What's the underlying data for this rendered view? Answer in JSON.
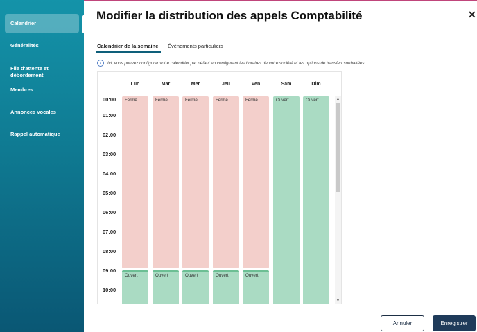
{
  "dialog": {
    "title": "Modifier la distribution des appels Comptabilité",
    "close_label": "✕"
  },
  "sidebar": {
    "items": [
      {
        "label": "Calendrier",
        "active": true
      },
      {
        "label": "Généralités"
      },
      {
        "label": "File d'attente et débordement"
      },
      {
        "label": "Membres"
      },
      {
        "label": "Annonces vocales"
      },
      {
        "label": "Rappel automatique"
      }
    ]
  },
  "tabs": [
    {
      "label": "Calendrier de la semaine",
      "active": true
    },
    {
      "label": "Évènements particuliers"
    }
  ],
  "info": {
    "icon": "i",
    "text": "Ici, vous pouvez configurer votre calendrier par défaut en configurant les horaires de votre société et les options de transfert souhaitées"
  },
  "calendar": {
    "days": [
      "Lun",
      "Mar",
      "Mer",
      "Jeu",
      "Ven",
      "Sam",
      "Dim"
    ],
    "times": [
      "00:00",
      "01:00",
      "02:00",
      "03:00",
      "04:00",
      "05:00",
      "06:00",
      "07:00",
      "08:00",
      "09:00",
      "10:00"
    ],
    "closed_label": "Fermé",
    "open_label": "Ouvert",
    "weekday_schedule": [
      {
        "state": "Fermé",
        "from": "00:00",
        "to": "09:00"
      },
      {
        "state": "Ouvert",
        "from": "09:00",
        "to": ""
      }
    ],
    "weekend_schedule": [
      {
        "state": "Ouvert",
        "from": "00:00",
        "to": ""
      }
    ]
  },
  "footer": {
    "cancel_label": "Annuler",
    "save_label": "Enregistrer"
  },
  "colors": {
    "accent": "#c0457b",
    "sidebar_top": "#1493a9",
    "sidebar_bottom": "#0a5774",
    "closed": "#f3cfcb",
    "open": "#aadbc3",
    "primary_button": "#1f3b5a"
  }
}
